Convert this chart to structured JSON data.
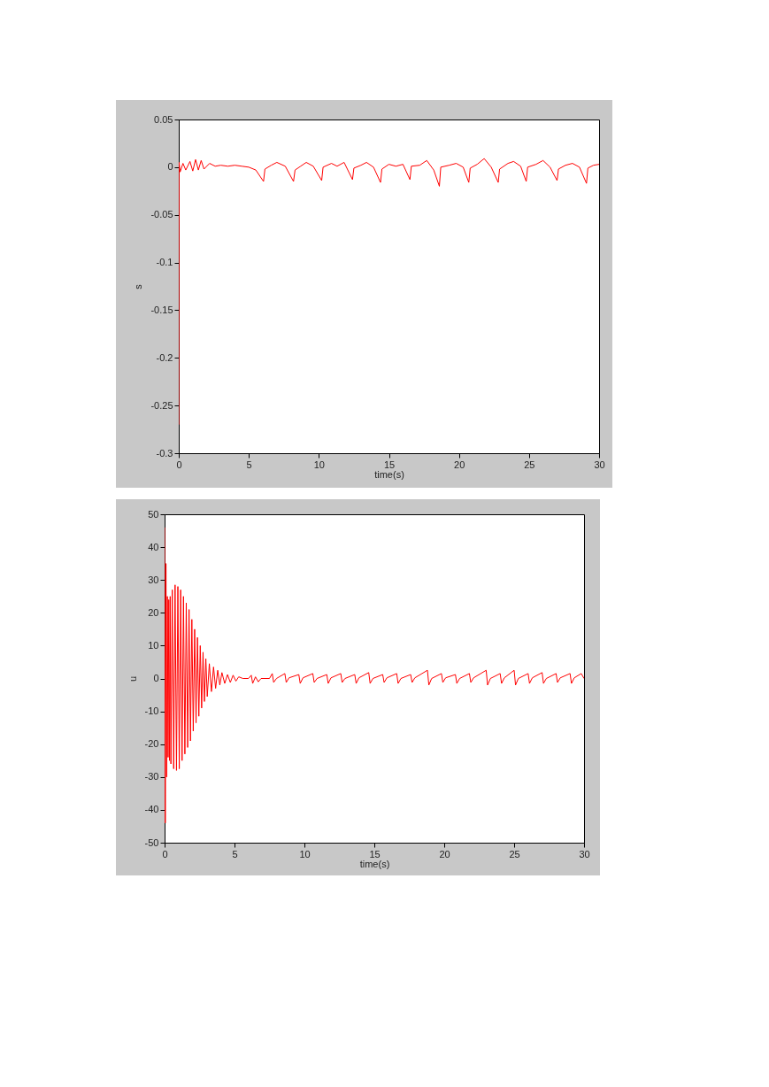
{
  "chart_data": [
    {
      "type": "line",
      "xlabel": "time(s)",
      "ylabel": "s",
      "grid": false,
      "xlim": [
        0,
        30
      ],
      "xticks": [
        0,
        5,
        10,
        15,
        20,
        25,
        30
      ],
      "ylim": [
        -0.3,
        0.05
      ],
      "yticks": [
        -0.3,
        -0.25,
        -0.2,
        -0.15,
        -0.1,
        -0.05,
        0,
        0.05
      ],
      "x": [
        0,
        0.02,
        0.1,
        0.3,
        0.5,
        0.8,
        1.0,
        1.2,
        1.4,
        1.6,
        1.8,
        2.2,
        2.6,
        3,
        3.5,
        4,
        4.5,
        5,
        5.5,
        6.05,
        6.15,
        6.6,
        7.0,
        7.6,
        8.19,
        8.3,
        8.7,
        9.1,
        9.6,
        10.2,
        10.3,
        10.9,
        11.3,
        11.8,
        12.4,
        12.5,
        13.0,
        13.4,
        13.9,
        14.4,
        14.5,
        15.0,
        15.5,
        16.0,
        16.5,
        16.6,
        17.2,
        17.7,
        18.2,
        18.6,
        18.7,
        19.3,
        19.8,
        20.3,
        20.7,
        20.8,
        21.3,
        21.8,
        22.3,
        22.8,
        22.9,
        23.5,
        23.9,
        24.4,
        24.8,
        24.9,
        25.5,
        26.0,
        26.5,
        27.0,
        27.1,
        27.6,
        28.1,
        28.6,
        29.1,
        29.2,
        29.6,
        30
      ],
      "series": [
        {
          "color": "#ff0000",
          "values": [
            -0.27,
            0.005,
            -0.005,
            0.004,
            -0.003,
            0.006,
            -0.004,
            0.008,
            -0.003,
            0.007,
            -0.002,
            0.004,
            0.001,
            0.002,
            0.001,
            0.002,
            0.001,
            0,
            -0.003,
            -0.015,
            -0.002,
            0.002,
            0.005,
            0.001,
            -0.015,
            -0.003,
            0.001,
            0.005,
            0.001,
            -0.014,
            0,
            0.004,
            0.001,
            0.005,
            -0.013,
            -0.001,
            0.002,
            0.005,
            0,
            -0.016,
            -0.002,
            0.003,
            0.001,
            0.003,
            -0.013,
            0.001,
            0.002,
            0.007,
            -0.003,
            -0.02,
            0,
            0.002,
            0.004,
            0,
            -0.016,
            -0.001,
            0.003,
            0.009,
            0,
            -0.016,
            -0.002,
            0.004,
            0.006,
            0.001,
            -0.015,
            0,
            0.003,
            0.007,
            0,
            -0.014,
            -0.002,
            0.002,
            0.004,
            0,
            -0.017,
            -0.001,
            0.002,
            0.003
          ]
        }
      ]
    },
    {
      "type": "line",
      "xlabel": "time(s)",
      "ylabel": "u",
      "grid": false,
      "xlim": [
        0,
        30
      ],
      "xticks": [
        0,
        5,
        10,
        15,
        20,
        25,
        30
      ],
      "ylim": [
        -50,
        50
      ],
      "yticks": [
        -50,
        -40,
        -30,
        -20,
        -10,
        0,
        10,
        20,
        30,
        40,
        50
      ],
      "x": [
        0,
        0.05,
        0.1,
        0.15,
        0.2,
        0.25,
        0.3,
        0.35,
        0.4,
        0.45,
        0.55,
        0.65,
        0.75,
        0.85,
        0.95,
        1.05,
        1.15,
        1.25,
        1.35,
        1.45,
        1.55,
        1.65,
        1.75,
        1.85,
        1.95,
        2.05,
        2.15,
        2.25,
        2.35,
        2.45,
        2.55,
        2.65,
        2.75,
        2.85,
        2.95,
        3.05,
        3.2,
        3.35,
        3.5,
        3.65,
        3.8,
        3.95,
        4.1,
        4.3,
        4.5,
        4.7,
        4.9,
        5.1,
        5.3,
        5.6,
        6.0,
        6.2,
        6.3,
        6.5,
        6.7,
        6.9,
        7.5,
        7.7,
        7.8,
        8.0,
        8.6,
        8.7,
        8.9,
        9.6,
        9.7,
        9.9,
        10.6,
        10.7,
        10.9,
        11.6,
        11.7,
        11.9,
        12.6,
        12.7,
        12.9,
        13.6,
        13.7,
        13.9,
        14.6,
        14.7,
        14.9,
        15.6,
        15.7,
        15.9,
        16.6,
        16.7,
        16.9,
        17.6,
        17.7,
        17.9,
        18.8,
        18.9,
        19.1,
        19.8,
        19.9,
        20.1,
        20.8,
        20.9,
        21.1,
        21.8,
        21.9,
        22.1,
        23.0,
        23.1,
        23.3,
        24.0,
        24.1,
        24.3,
        25.0,
        25.1,
        25.3,
        26.0,
        26.1,
        26.3,
        27.0,
        27.1,
        27.3,
        28.0,
        28.1,
        28.3,
        29.0,
        29.1,
        29.3,
        29.8,
        30
      ],
      "series": [
        {
          "color": "#ff0000",
          "values": [
            46,
            -44,
            35,
            -30,
            25,
            -24,
            24,
            -25,
            25,
            -26,
            27,
            -27.5,
            28.5,
            -28,
            28,
            -27.5,
            27,
            -25,
            25,
            -23,
            23,
            -21,
            21,
            -19,
            18,
            -16,
            15,
            -13.5,
            12.5,
            -11.5,
            10,
            -9,
            8,
            -7,
            6,
            -5.5,
            4.5,
            -4,
            3.5,
            -3,
            2.5,
            -2,
            1.8,
            -1.5,
            1.2,
            -1.2,
            1,
            -0.8,
            0.5,
            0,
            0,
            1,
            -1.5,
            0.5,
            -1,
            0,
            0,
            1.5,
            -1.2,
            0,
            1.5,
            -1.2,
            0.2,
            1.2,
            -1.5,
            0.2,
            1.5,
            -1.2,
            0,
            1.2,
            -1.5,
            0.2,
            1.5,
            -1.2,
            0,
            1.2,
            -1.5,
            0.2,
            1.8,
            -1.5,
            0,
            1.2,
            -1.2,
            0.2,
            1.5,
            -1.5,
            0,
            1.2,
            -1.2,
            0.2,
            2.5,
            -2,
            0,
            1.5,
            -1.2,
            0.2,
            1.2,
            -1.5,
            0,
            1.5,
            -1.2,
            0.2,
            2.5,
            -2,
            0,
            1.5,
            -1.5,
            0.2,
            2.5,
            -2,
            0,
            1.5,
            -1.5,
            0.2,
            1.8,
            -1.5,
            0,
            1.5,
            -1.2,
            0.2,
            1.5,
            -1.5,
            0.2,
            1.5,
            0
          ]
        }
      ]
    }
  ]
}
